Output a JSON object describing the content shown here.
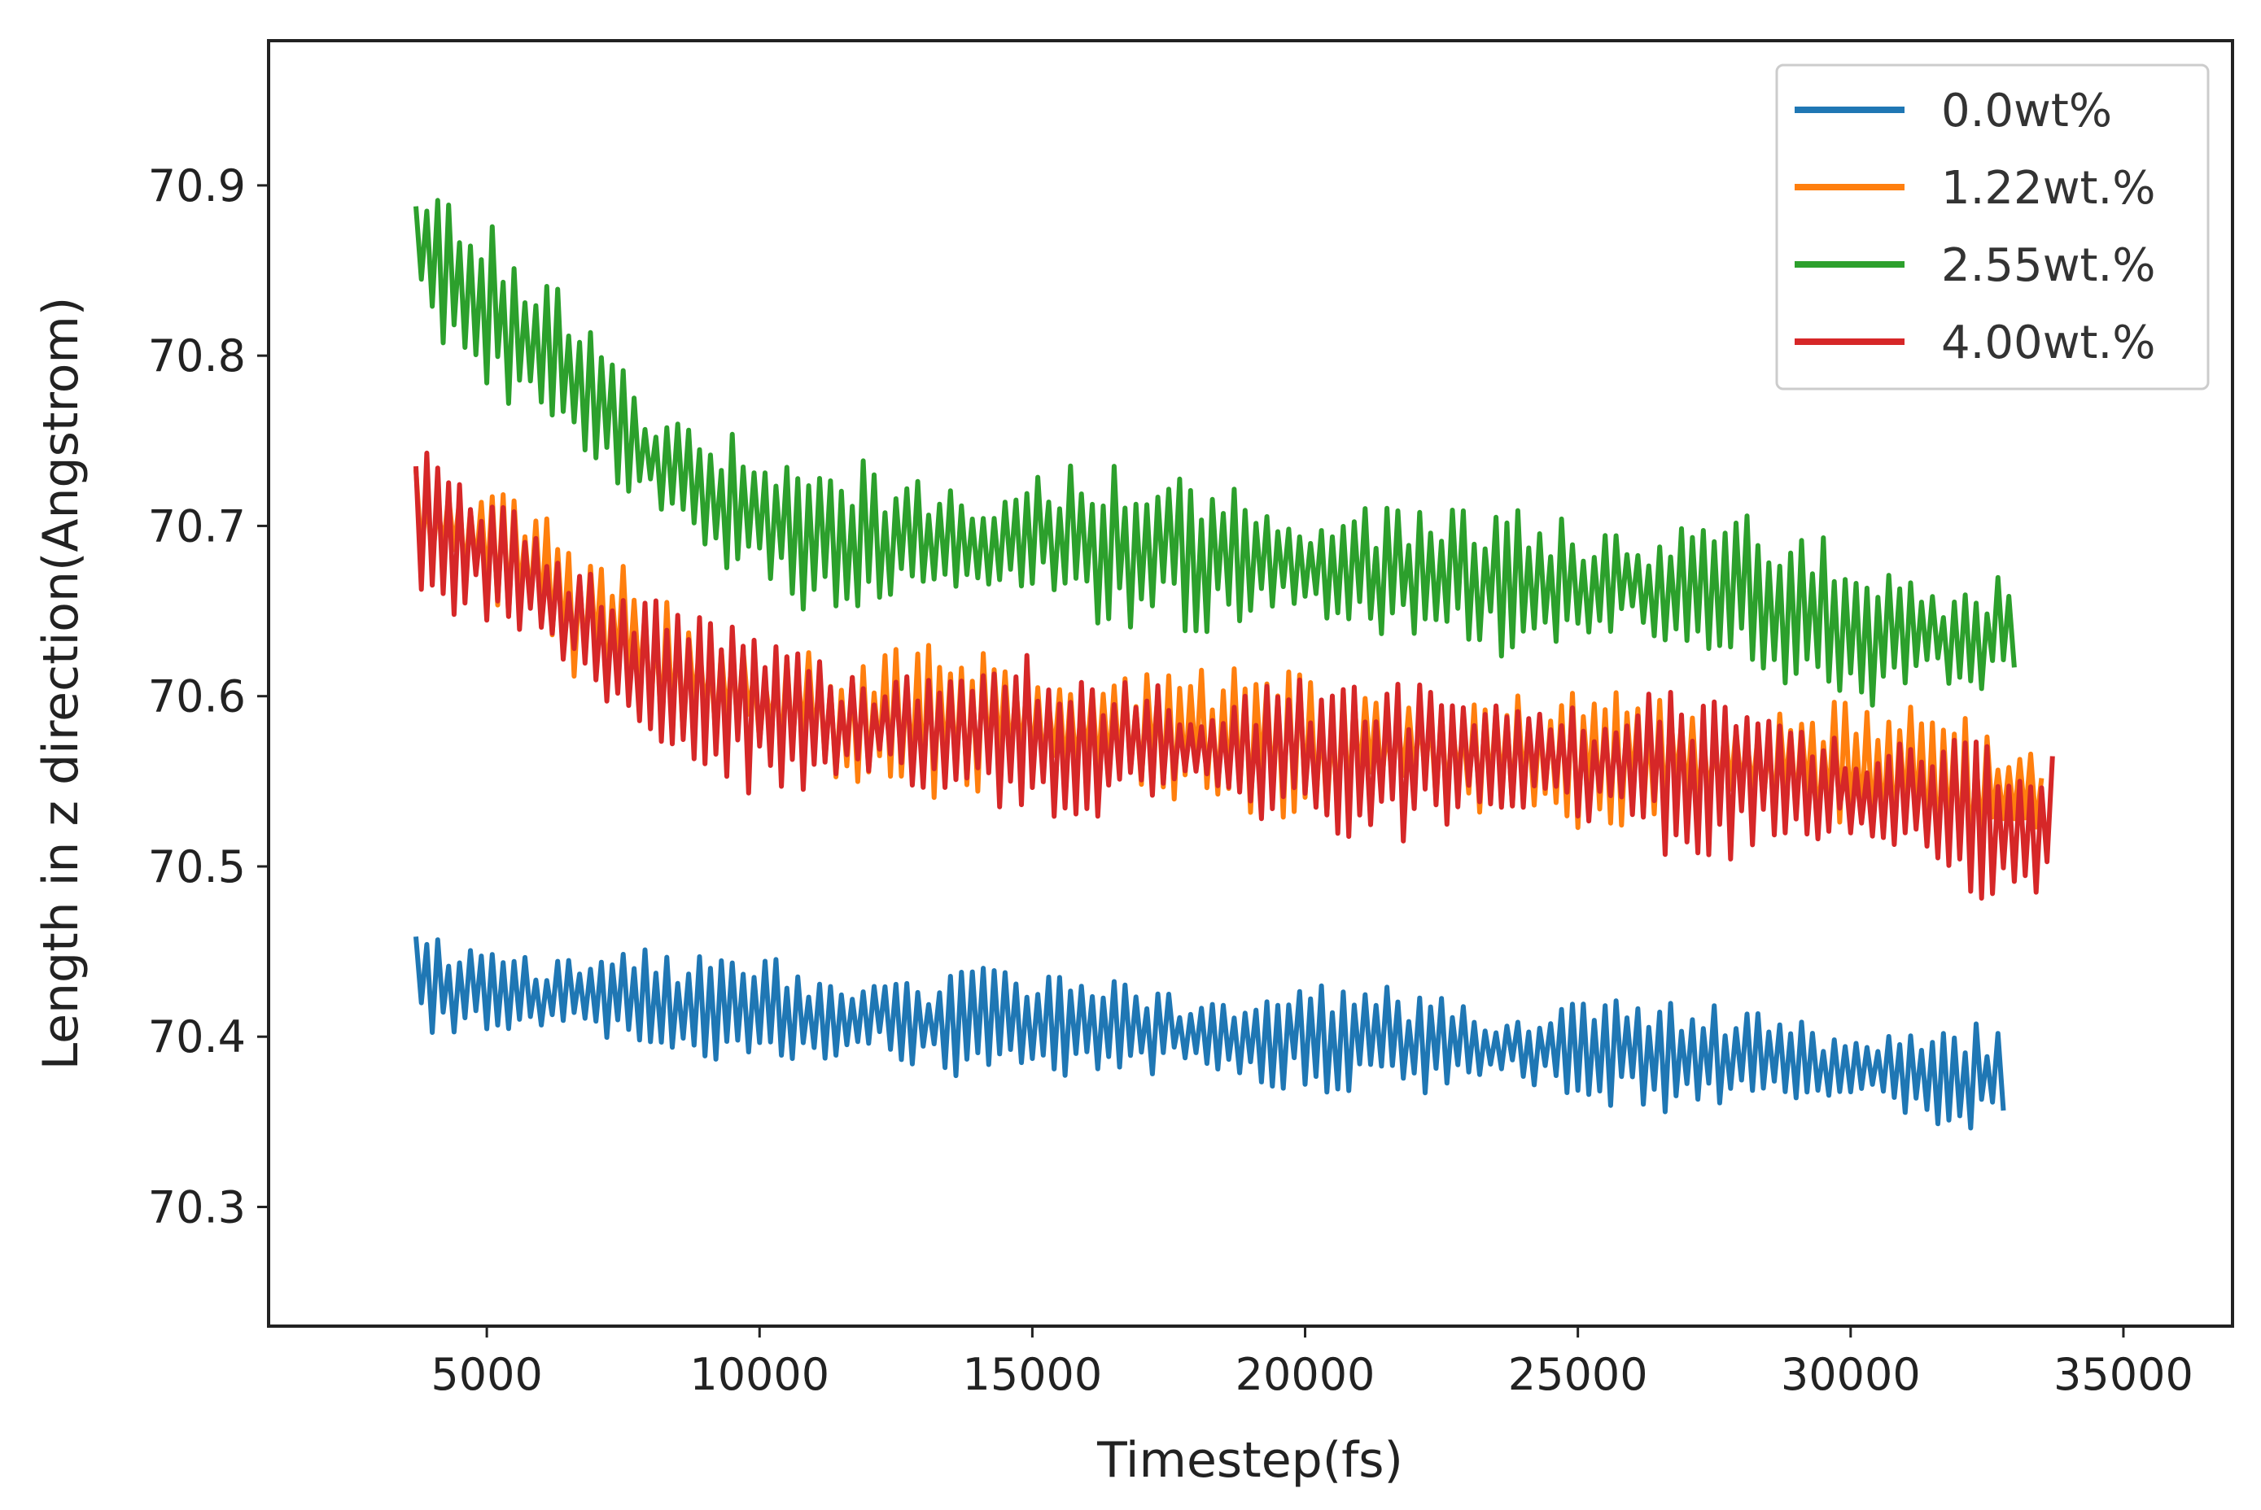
{
  "chart_data": {
    "type": "line",
    "title": "",
    "xlabel": "Timestep(fs)",
    "ylabel": "Length in z direction(Angstrom)",
    "xlim": [
      1000,
      37000
    ],
    "ylim": [
      70.23,
      70.985
    ],
    "xticks": [
      5000,
      10000,
      15000,
      20000,
      25000,
      30000,
      35000
    ],
    "yticks": [
      70.3,
      70.4,
      70.5,
      70.6,
      70.7,
      70.8,
      70.9
    ],
    "xtick_labels": [
      "5000",
      "10000",
      "15000",
      "20000",
      "25000",
      "30000",
      "35000"
    ],
    "ytick_labels": [
      "70.3",
      "70.4",
      "70.5",
      "70.6",
      "70.7",
      "70.8",
      "70.9"
    ],
    "grid": false,
    "legend_position": "top-right",
    "series": [
      {
        "name": "0.0wt%",
        "color": "#1f77b4",
        "x_start": 3700,
        "x_end": 32800,
        "trend": [
          [
            3700,
            70.432
          ],
          [
            6000,
            70.425
          ],
          [
            10000,
            70.415
          ],
          [
            15000,
            70.405
          ],
          [
            20000,
            70.4
          ],
          [
            25000,
            70.392
          ],
          [
            30000,
            70.382
          ],
          [
            32800,
            70.375
          ]
        ],
        "noise_amplitude": 0.035
      },
      {
        "name": "1.22wt.%",
        "color": "#ff7f0e",
        "x_start": 3700,
        "x_end": 33500,
        "trend": [
          [
            3700,
            70.705
          ],
          [
            5000,
            70.69
          ],
          [
            7000,
            70.645
          ],
          [
            9000,
            70.605
          ],
          [
            12000,
            70.585
          ],
          [
            15000,
            70.585
          ],
          [
            20000,
            70.57
          ],
          [
            25000,
            70.565
          ],
          [
            30000,
            70.555
          ],
          [
            33500,
            70.54
          ]
        ],
        "noise_amplitude": 0.045
      },
      {
        "name": "2.55wt.%",
        "color": "#2ca02c",
        "x_start": 3700,
        "x_end": 33000,
        "trend": [
          [
            3700,
            70.865
          ],
          [
            5000,
            70.83
          ],
          [
            6500,
            70.79
          ],
          [
            8000,
            70.74
          ],
          [
            10000,
            70.705
          ],
          [
            12000,
            70.69
          ],
          [
            15000,
            70.695
          ],
          [
            20000,
            70.675
          ],
          [
            25000,
            70.665
          ],
          [
            28000,
            70.66
          ],
          [
            30500,
            70.635
          ],
          [
            33000,
            70.635
          ]
        ],
        "noise_amplitude": 0.05
      },
      {
        "name": "4.00wt.%",
        "color": "#d62728",
        "x_start": 3700,
        "x_end": 33700,
        "trend": [
          [
            3700,
            70.7
          ],
          [
            5000,
            70.685
          ],
          [
            7000,
            70.635
          ],
          [
            9000,
            70.595
          ],
          [
            12000,
            70.58
          ],
          [
            15000,
            70.575
          ],
          [
            20000,
            70.565
          ],
          [
            25000,
            70.56
          ],
          [
            30000,
            70.545
          ],
          [
            33700,
            70.52
          ]
        ],
        "noise_amplitude": 0.05
      }
    ]
  }
}
